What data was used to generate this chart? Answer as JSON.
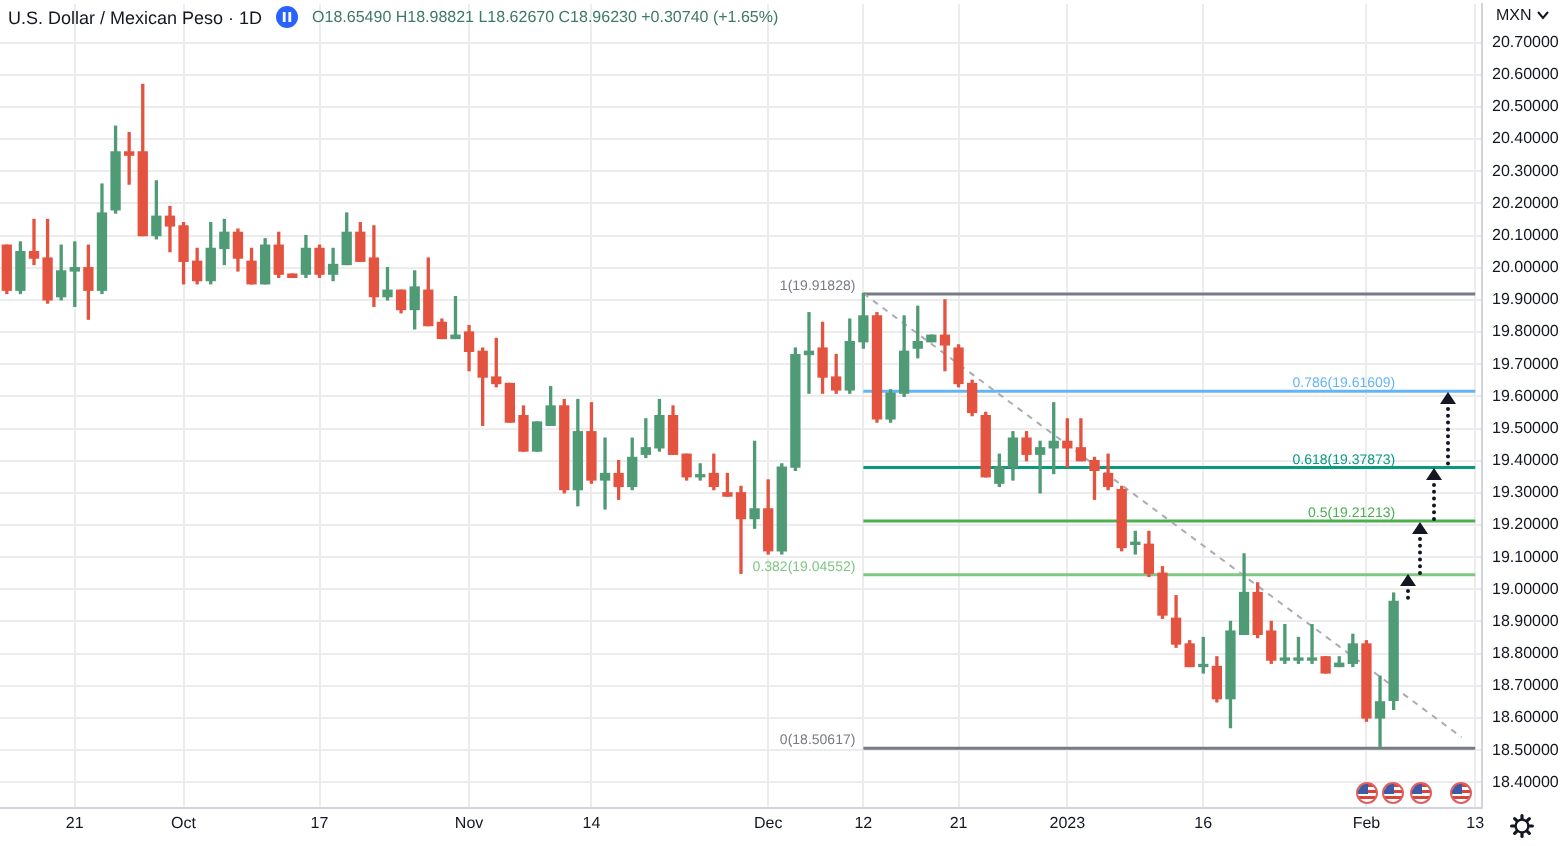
{
  "chart_data": {
    "type": "candlestick",
    "title": "U.S. Dollar / Mexican Peso · 1D",
    "subtitle": "O18.65490 H18.98821 L18.62670 C18.96230 +0.30740 (+1.65%)",
    "ylabel": "MXN",
    "categories": [
      null,
      null,
      null,
      null,
      null,
      "21",
      null,
      null,
      null,
      null,
      null,
      null,
      null,
      "Oct",
      null,
      null,
      null,
      null,
      null,
      null,
      null,
      null,
      null,
      "17",
      null,
      null,
      null,
      null,
      null,
      null,
      null,
      null,
      null,
      null,
      "Nov",
      null,
      null,
      null,
      null,
      null,
      null,
      null,
      null,
      "14",
      null,
      null,
      null,
      null,
      null,
      null,
      null,
      null,
      null,
      null,
      null,
      null,
      "Dec",
      null,
      null,
      null,
      null,
      null,
      null,
      "12",
      null,
      null,
      null,
      null,
      null,
      null,
      "21",
      null,
      null,
      null,
      null,
      null,
      null,
      null,
      "2023",
      null,
      null,
      null,
      null,
      null,
      null,
      null,
      null,
      null,
      "16",
      null,
      null,
      null,
      null,
      null,
      null,
      null,
      null,
      null,
      null,
      null,
      "Feb",
      null,
      null,
      null,
      null,
      null,
      null,
      null,
      "13"
    ],
    "ohlc": [
      [
        20.07,
        20.07,
        19.92,
        19.93
      ],
      [
        19.93,
        20.08,
        19.92,
        20.05
      ],
      [
        20.05,
        20.15,
        20.01,
        20.03
      ],
      [
        20.03,
        20.15,
        19.89,
        19.9
      ],
      [
        19.91,
        20.07,
        19.9,
        19.99
      ],
      [
        19.99,
        20.08,
        19.88,
        20.0
      ],
      [
        20.0,
        20.07,
        19.84,
        19.93
      ],
      [
        19.93,
        20.26,
        19.92,
        20.17
      ],
      [
        20.18,
        20.44,
        20.17,
        20.36
      ],
      [
        20.36,
        20.42,
        20.26,
        20.35
      ],
      [
        20.36,
        20.57,
        20.1,
        20.1
      ],
      [
        20.1,
        20.27,
        20.09,
        20.16
      ],
      [
        20.16,
        20.19,
        20.05,
        20.13
      ],
      [
        20.13,
        20.14,
        19.95,
        20.02
      ],
      [
        20.02,
        20.06,
        19.95,
        19.96
      ],
      [
        19.96,
        20.14,
        19.95,
        20.06
      ],
      [
        20.06,
        20.15,
        20.01,
        20.11
      ],
      [
        20.11,
        20.12,
        19.99,
        20.03
      ],
      [
        20.02,
        20.06,
        19.95,
        19.95
      ],
      [
        19.95,
        20.09,
        19.95,
        20.07
      ],
      [
        20.07,
        20.11,
        19.97,
        19.98
      ],
      [
        19.98,
        19.98,
        19.97,
        19.97
      ],
      [
        19.98,
        20.1,
        19.97,
        20.06
      ],
      [
        20.06,
        20.07,
        19.97,
        19.98
      ],
      [
        19.98,
        20.06,
        19.96,
        20.01
      ],
      [
        20.01,
        20.17,
        20.01,
        20.11
      ],
      [
        20.11,
        20.14,
        20.02,
        20.02
      ],
      [
        20.03,
        20.13,
        19.88,
        19.91
      ],
      [
        19.91,
        20.0,
        19.9,
        19.93
      ],
      [
        19.93,
        19.93,
        19.86,
        19.87
      ],
      [
        19.87,
        19.99,
        19.81,
        19.94
      ],
      [
        19.93,
        20.03,
        19.82,
        19.82
      ],
      [
        19.83,
        19.84,
        19.78,
        19.78
      ],
      [
        19.78,
        19.91,
        19.78,
        19.79
      ],
      [
        19.8,
        19.82,
        19.68,
        19.74
      ],
      [
        19.74,
        19.75,
        19.51,
        19.66
      ],
      [
        19.66,
        19.78,
        19.63,
        19.64
      ],
      [
        19.64,
        19.64,
        19.52,
        19.52
      ],
      [
        19.54,
        19.57,
        19.43,
        19.43
      ],
      [
        19.43,
        19.52,
        19.43,
        19.52
      ],
      [
        19.51,
        19.63,
        19.51,
        19.57
      ],
      [
        19.57,
        19.59,
        19.3,
        19.31
      ],
      [
        19.31,
        19.59,
        19.26,
        19.49
      ],
      [
        19.49,
        19.58,
        19.33,
        19.34
      ],
      [
        19.34,
        19.47,
        19.25,
        19.36
      ],
      [
        19.36,
        19.4,
        19.28,
        19.32
      ],
      [
        19.32,
        19.47,
        19.31,
        19.41
      ],
      [
        19.42,
        19.53,
        19.41,
        19.44
      ],
      [
        19.44,
        19.59,
        19.43,
        19.54
      ],
      [
        19.54,
        19.57,
        19.42,
        19.42
      ],
      [
        19.42,
        19.42,
        19.34,
        19.35
      ],
      [
        19.35,
        19.39,
        19.34,
        19.35
      ],
      [
        19.36,
        19.42,
        19.31,
        19.32
      ],
      [
        19.3,
        19.36,
        19.29,
        19.29
      ],
      [
        19.3,
        19.32,
        19.05,
        19.22
      ],
      [
        19.22,
        19.46,
        19.19,
        19.25
      ],
      [
        19.25,
        19.34,
        19.11,
        19.12
      ],
      [
        19.12,
        19.39,
        19.11,
        19.38
      ],
      [
        19.38,
        19.75,
        19.37,
        19.73
      ],
      [
        19.73,
        19.86,
        19.61,
        19.74
      ],
      [
        19.75,
        19.83,
        19.61,
        19.66
      ],
      [
        19.66,
        19.73,
        19.61,
        19.62
      ],
      [
        19.62,
        19.84,
        19.61,
        19.77
      ],
      [
        19.77,
        19.92,
        19.75,
        19.85
      ],
      [
        19.85,
        19.86,
        19.52,
        19.53
      ],
      [
        19.53,
        19.62,
        19.52,
        19.61
      ],
      [
        19.61,
        19.85,
        19.6,
        19.74
      ],
      [
        19.75,
        19.88,
        19.72,
        19.77
      ],
      [
        19.77,
        19.79,
        19.77,
        19.79
      ],
      [
        19.79,
        19.9,
        19.68,
        19.76
      ],
      [
        19.75,
        19.76,
        19.63,
        19.64
      ],
      [
        19.64,
        19.65,
        19.54,
        19.55
      ],
      [
        19.54,
        19.55,
        19.35,
        19.35
      ],
      [
        19.33,
        19.42,
        19.32,
        19.38
      ],
      [
        19.38,
        19.49,
        19.34,
        19.47
      ],
      [
        19.47,
        19.49,
        19.4,
        19.42
      ],
      [
        19.42,
        19.46,
        19.3,
        19.44
      ],
      [
        19.44,
        19.58,
        19.36,
        19.46
      ],
      [
        19.46,
        19.53,
        19.38,
        19.44
      ],
      [
        19.44,
        19.53,
        19.4,
        19.4
      ],
      [
        19.4,
        19.41,
        19.28,
        19.37
      ],
      [
        19.36,
        19.42,
        19.31,
        19.32
      ],
      [
        19.31,
        19.32,
        19.12,
        19.13
      ],
      [
        19.14,
        19.18,
        19.11,
        19.14
      ],
      [
        19.14,
        19.18,
        19.04,
        19.05
      ],
      [
        19.05,
        19.07,
        18.91,
        18.92
      ],
      [
        18.91,
        18.98,
        18.82,
        18.83
      ],
      [
        18.83,
        18.84,
        18.76,
        18.76
      ],
      [
        18.76,
        18.85,
        18.74,
        18.76
      ],
      [
        18.76,
        18.79,
        18.65,
        18.66
      ],
      [
        18.66,
        18.9,
        18.57,
        18.87
      ],
      [
        18.86,
        19.11,
        18.86,
        18.99
      ],
      [
        18.99,
        19.02,
        18.85,
        18.86
      ],
      [
        18.87,
        18.9,
        18.77,
        18.78
      ],
      [
        18.78,
        18.89,
        18.77,
        18.78
      ],
      [
        18.78,
        18.85,
        18.77,
        18.78
      ],
      [
        18.78,
        18.89,
        18.77,
        18.78
      ],
      [
        18.79,
        18.79,
        18.74,
        18.74
      ],
      [
        18.76,
        18.79,
        18.76,
        18.77
      ],
      [
        18.77,
        18.86,
        18.76,
        18.83
      ],
      [
        18.83,
        18.84,
        18.59,
        18.6
      ],
      [
        18.6,
        18.73,
        18.51,
        18.65
      ],
      [
        18.6549,
        18.98821,
        18.6267,
        18.9623
      ],
      null,
      null,
      null,
      null,
      null,
      null
    ],
    "colors": [
      "#e4533f",
      "#4e9b76",
      "#e4533f",
      "#e4533f",
      "#4e9b76",
      "#4e9b76",
      "#e4533f",
      "#4e9b76",
      "#4e9b76",
      "#e4533f",
      "#e4533f",
      "#4e9b76",
      "#e4533f",
      "#e4533f",
      "#e4533f",
      "#4e9b76",
      "#4e9b76",
      "#e4533f",
      "#e4533f",
      "#4e9b76",
      "#e4533f",
      "#e4533f",
      "#4e9b76",
      "#e4533f",
      "#4e9b76",
      "#4e9b76",
      "#e4533f",
      "#e4533f",
      "#4e9b76",
      "#e4533f",
      "#4e9b76",
      "#e4533f",
      "#e4533f",
      "#4e9b76",
      "#e4533f",
      "#e4533f",
      "#e4533f",
      "#e4533f",
      "#e4533f",
      "#4e9b76",
      "#4e9b76",
      "#e4533f",
      "#4e9b76",
      "#e4533f",
      "#4e9b76",
      "#e4533f",
      "#4e9b76",
      "#4e9b76",
      "#4e9b76",
      "#e4533f",
      "#e4533f",
      "#4e9b76",
      "#e4533f",
      "#e4533f",
      "#e4533f",
      "#4e9b76",
      "#e4533f",
      "#4e9b76",
      "#4e9b76",
      "#4e9b76",
      "#e4533f",
      "#e4533f",
      "#4e9b76",
      "#4e9b76",
      "#e4533f",
      "#4e9b76",
      "#4e9b76",
      "#4e9b76",
      "#4e9b76",
      "#e4533f",
      "#e4533f",
      "#e4533f",
      "#e4533f",
      "#4e9b76",
      "#4e9b76",
      "#e4533f",
      "#4e9b76",
      "#4e9b76",
      "#e4533f",
      "#e4533f",
      "#e4533f",
      "#e4533f",
      "#e4533f",
      "#4e9b76",
      "#e4533f",
      "#e4533f",
      "#e4533f",
      "#e4533f",
      "#4e9b76",
      "#e4533f",
      "#4e9b76",
      "#4e9b76",
      "#e4533f",
      "#e4533f",
      "#4e9b76",
      "#4e9b76",
      "#4e9b76",
      "#e4533f",
      "#4e9b76",
      "#4e9b76",
      "#e4533f",
      "#4e9b76",
      "#4e9b76",
      null,
      null,
      null,
      null,
      null,
      null
    ],
    "series": [
      {
        "type": "line",
        "color": "#a9acb5",
        "line_style": "dashed",
        "values": [
          null,
          null,
          null,
          null,
          null,
          null,
          null,
          null,
          null,
          null,
          null,
          null,
          null,
          null,
          null,
          null,
          null,
          null,
          null,
          null,
          null,
          null,
          null,
          null,
          null,
          null,
          null,
          null,
          null,
          null,
          null,
          null,
          null,
          null,
          null,
          null,
          null,
          null,
          null,
          null,
          null,
          null,
          null,
          null,
          null,
          null,
          null,
          null,
          null,
          null,
          null,
          null,
          null,
          null,
          null,
          null,
          null,
          null,
          null,
          null,
          null,
          null,
          null,
          19.92,
          null,
          null,
          null,
          null,
          null,
          null,
          null,
          null,
          null,
          null,
          null,
          null,
          null,
          null,
          null,
          null,
          null,
          null,
          null,
          null,
          null,
          null,
          null,
          null,
          null,
          null,
          null,
          null,
          null,
          null,
          null,
          null,
          null,
          null,
          null,
          null,
          null,
          null,
          null,
          null,
          null,
          null,
          null,
          18.54,
          null
        ]
      },
      {
        "type": "line",
        "name": "1(19.91828)",
        "color": "#787b86",
        "values": [
          null,
          null,
          null,
          null,
          null,
          null,
          null,
          null,
          null,
          null,
          null,
          null,
          null,
          null,
          null,
          null,
          null,
          null,
          null,
          null,
          null,
          null,
          null,
          null,
          null,
          null,
          null,
          null,
          null,
          null,
          null,
          null,
          null,
          null,
          null,
          null,
          null,
          null,
          null,
          null,
          null,
          null,
          null,
          null,
          null,
          null,
          null,
          null,
          null,
          null,
          null,
          null,
          null,
          null,
          null,
          null,
          null,
          null,
          null,
          null,
          null,
          null,
          null,
          19.91828,
          null,
          null,
          null,
          null,
          null,
          null,
          null,
          null,
          null,
          null,
          null,
          null,
          null,
          null,
          null,
          null,
          null,
          null,
          null,
          null,
          null,
          null,
          null,
          null,
          null,
          null,
          null,
          null,
          null,
          null,
          null,
          null,
          null,
          null,
          null,
          null,
          null,
          null,
          null,
          null,
          null,
          null,
          null,
          null,
          19.91828
        ]
      },
      {
        "type": "line",
        "name": "0.786(19.61609)",
        "color": "#64b5f6",
        "values": [
          null,
          null,
          null,
          null,
          null,
          null,
          null,
          null,
          null,
          null,
          null,
          null,
          null,
          null,
          null,
          null,
          null,
          null,
          null,
          null,
          null,
          null,
          null,
          null,
          null,
          null,
          null,
          null,
          null,
          null,
          null,
          null,
          null,
          null,
          null,
          null,
          null,
          null,
          null,
          null,
          null,
          null,
          null,
          null,
          null,
          null,
          null,
          null,
          null,
          null,
          null,
          null,
          null,
          null,
          null,
          null,
          null,
          null,
          null,
          null,
          null,
          null,
          null,
          19.61609,
          null,
          null,
          null,
          null,
          null,
          null,
          null,
          null,
          null,
          null,
          null,
          null,
          null,
          null,
          null,
          null,
          null,
          null,
          null,
          null,
          null,
          null,
          null,
          null,
          null,
          null,
          null,
          null,
          null,
          null,
          null,
          null,
          null,
          null,
          null,
          null,
          null,
          null,
          null,
          null,
          null,
          null,
          null,
          null,
          19.61609
        ]
      },
      {
        "type": "line",
        "name": "0.618(19.37873)",
        "color": "#089981",
        "values": [
          null,
          null,
          null,
          null,
          null,
          null,
          null,
          null,
          null,
          null,
          null,
          null,
          null,
          null,
          null,
          null,
          null,
          null,
          null,
          null,
          null,
          null,
          null,
          null,
          null,
          null,
          null,
          null,
          null,
          null,
          null,
          null,
          null,
          null,
          null,
          null,
          null,
          null,
          null,
          null,
          null,
          null,
          null,
          null,
          null,
          null,
          null,
          null,
          null,
          null,
          null,
          null,
          null,
          null,
          null,
          null,
          null,
          null,
          null,
          null,
          null,
          null,
          null,
          19.37873,
          null,
          null,
          null,
          null,
          null,
          null,
          null,
          null,
          null,
          null,
          null,
          null,
          null,
          null,
          null,
          null,
          null,
          null,
          null,
          null,
          null,
          null,
          null,
          null,
          null,
          null,
          null,
          null,
          null,
          null,
          null,
          null,
          null,
          null,
          null,
          null,
          null,
          null,
          null,
          null,
          null,
          null,
          null,
          null,
          19.37873
        ]
      },
      {
        "type": "line",
        "name": "0.5(19.21213)",
        "color": "#4caf50",
        "values": [
          null,
          null,
          null,
          null,
          null,
          null,
          null,
          null,
          null,
          null,
          null,
          null,
          null,
          null,
          null,
          null,
          null,
          null,
          null,
          null,
          null,
          null,
          null,
          null,
          null,
          null,
          null,
          null,
          null,
          null,
          null,
          null,
          null,
          null,
          null,
          null,
          null,
          null,
          null,
          null,
          null,
          null,
          null,
          null,
          null,
          null,
          null,
          null,
          null,
          null,
          null,
          null,
          null,
          null,
          null,
          null,
          null,
          null,
          null,
          null,
          null,
          null,
          null,
          19.21213,
          null,
          null,
          null,
          null,
          null,
          null,
          null,
          null,
          null,
          null,
          null,
          null,
          null,
          null,
          null,
          null,
          null,
          null,
          null,
          null,
          null,
          null,
          null,
          null,
          null,
          null,
          null,
          null,
          null,
          null,
          null,
          null,
          null,
          null,
          null,
          null,
          null,
          null,
          null,
          null,
          null,
          null,
          null,
          null,
          19.21213
        ]
      },
      {
        "type": "line",
        "name": "0.382(19.04552)",
        "color": "#81c784",
        "values": [
          null,
          null,
          null,
          null,
          null,
          null,
          null,
          null,
          null,
          null,
          null,
          null,
          null,
          null,
          null,
          null,
          null,
          null,
          null,
          null,
          null,
          null,
          null,
          null,
          null,
          null,
          null,
          null,
          null,
          null,
          null,
          null,
          null,
          null,
          null,
          null,
          null,
          null,
          null,
          null,
          null,
          null,
          null,
          null,
          null,
          null,
          null,
          null,
          null,
          null,
          null,
          null,
          null,
          null,
          null,
          null,
          null,
          null,
          null,
          null,
          null,
          null,
          null,
          19.04552,
          null,
          null,
          null,
          null,
          null,
          null,
          null,
          null,
          null,
          null,
          null,
          null,
          null,
          null,
          null,
          null,
          null,
          null,
          null,
          null,
          null,
          null,
          null,
          null,
          null,
          null,
          null,
          null,
          null,
          null,
          null,
          null,
          null,
          null,
          null,
          null,
          null,
          null,
          null,
          null,
          null,
          null,
          null,
          null,
          19.04552
        ]
      },
      {
        "type": "line",
        "name": "0(18.50617)",
        "color": "#787b86",
        "values": [
          null,
          null,
          null,
          null,
          null,
          null,
          null,
          null,
          null,
          null,
          null,
          null,
          null,
          null,
          null,
          null,
          null,
          null,
          null,
          null,
          null,
          null,
          null,
          null,
          null,
          null,
          null,
          null,
          null,
          null,
          null,
          null,
          null,
          null,
          null,
          null,
          null,
          null,
          null,
          null,
          null,
          null,
          null,
          null,
          null,
          null,
          null,
          null,
          null,
          null,
          null,
          null,
          null,
          null,
          null,
          null,
          null,
          null,
          null,
          null,
          null,
          null,
          null,
          18.50617,
          null,
          null,
          null,
          null,
          null,
          null,
          null,
          null,
          null,
          null,
          null,
          null,
          null,
          null,
          null,
          null,
          null,
          null,
          null,
          null,
          null,
          null,
          null,
          null,
          null,
          null,
          null,
          null,
          null,
          null,
          null,
          null,
          null,
          null,
          null,
          null,
          null,
          null,
          null,
          null,
          null,
          null,
          null,
          null,
          18.50617
        ]
      }
    ],
    "ylim": [
      18.32,
      20.82
    ],
    "yticks": [
      {
        "value": 18.4,
        "label": "18.40000"
      },
      {
        "value": 18.5,
        "label": "18.50000"
      },
      {
        "value": 18.6,
        "label": "18.60000"
      },
      {
        "value": 18.7,
        "label": "18.70000"
      },
      {
        "value": 18.8,
        "label": "18.80000"
      },
      {
        "value": 18.9,
        "label": "18.90000"
      },
      {
        "value": 19.0,
        "label": "19.00000"
      },
      {
        "value": 19.1,
        "label": "19.10000"
      },
      {
        "value": 19.2,
        "label": "19.20000"
      },
      {
        "value": 19.3,
        "label": "19.30000"
      },
      {
        "value": 19.4,
        "label": "19.40000"
      },
      {
        "value": 19.5,
        "label": "19.50000"
      },
      {
        "value": 19.6,
        "label": "19.60000"
      },
      {
        "value": 19.7,
        "label": "19.70000"
      },
      {
        "value": 19.8,
        "label": "19.80000"
      },
      {
        "value": 19.9,
        "label": "19.90000"
      },
      {
        "value": 20.0,
        "label": "20.00000"
      },
      {
        "value": 20.1,
        "label": "20.10000"
      },
      {
        "value": 20.2,
        "label": "20.20000"
      },
      {
        "value": 20.3,
        "label": "20.30000"
      },
      {
        "value": 20.4,
        "label": "20.40000"
      },
      {
        "value": 20.5,
        "label": "20.50000"
      },
      {
        "value": 20.6,
        "label": "20.60000"
      },
      {
        "value": 20.7,
        "label": "20.70000"
      }
    ],
    "grid": true
  }
}
